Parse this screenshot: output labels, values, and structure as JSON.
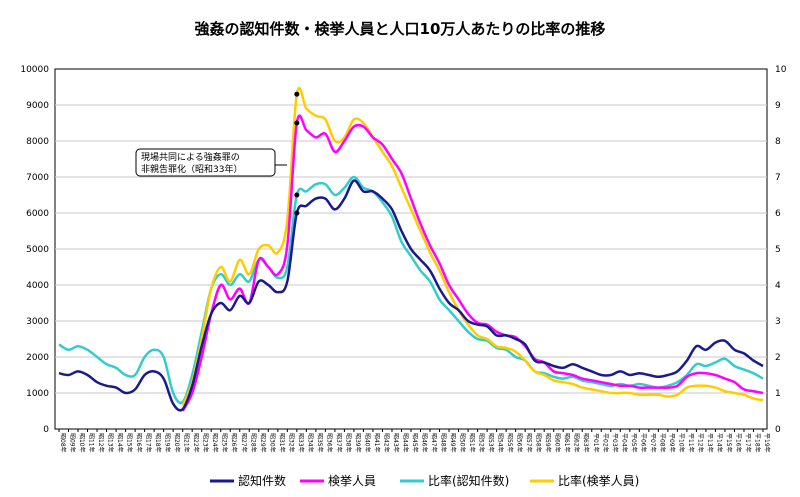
{
  "chart_data": {
    "type": "line",
    "title": "強姦の認知件数・検挙人員と人口10万人あたりの比率の推移",
    "ylim_left": [
      0,
      10000
    ],
    "ylim_right": [
      0,
      10
    ],
    "yticks_left": [
      "0",
      "1000",
      "2000",
      "3000",
      "4000",
      "5000",
      "6000",
      "7000",
      "8000",
      "9000",
      "10000"
    ],
    "yticks_right": [
      "0",
      "1",
      "2",
      "3",
      "4",
      "5",
      "6",
      "7",
      "8",
      "9",
      "10"
    ],
    "categories": [
      "昭08年",
      "昭09年",
      "昭10年",
      "昭11年",
      "昭12年",
      "昭13年",
      "昭14年",
      "昭15年",
      "昭16年",
      "昭17年",
      "昭18年",
      "昭19年",
      "昭20年",
      "昭21年",
      "昭22年",
      "昭23年",
      "昭24年",
      "昭25年",
      "昭26年",
      "昭27年",
      "昭28年",
      "昭29年",
      "昭30年",
      "昭31年",
      "昭32年",
      "昭33年",
      "昭34年",
      "昭35年",
      "昭36年",
      "昭37年",
      "昭38年",
      "昭39年",
      "昭40年",
      "昭41年",
      "昭42年",
      "昭43年",
      "昭44年",
      "昭45年",
      "昭46年",
      "昭47年",
      "昭48年",
      "昭49年",
      "昭50年",
      "昭51年",
      "昭52年",
      "昭53年",
      "昭54年",
      "昭55年",
      "昭56年",
      "昭57年",
      "昭58年",
      "昭59年",
      "昭60年",
      "昭61年",
      "昭62年",
      "昭63年",
      "平01年",
      "平02年",
      "平03年",
      "平04年",
      "平05年",
      "平06年",
      "平07年",
      "平08年",
      "平09年",
      "平10年",
      "平11年",
      "平12年",
      "平13年",
      "平14年",
      "平15年",
      "平16年",
      "平17年",
      "平18年",
      "平19年"
    ],
    "series": [
      {
        "name": "認知件数",
        "axis": "left",
        "color": "#1a1a8c",
        "values": [
          1550,
          1500,
          1600,
          1500,
          1300,
          1200,
          1150,
          1000,
          1100,
          1500,
          1600,
          1400,
          700,
          550,
          1200,
          2300,
          3200,
          3500,
          3300,
          3700,
          3500,
          4100,
          4000,
          3800,
          4100,
          6000,
          6200,
          6400,
          6400,
          6100,
          6400,
          6900,
          6600,
          6600,
          6400,
          6100,
          5500,
          5000,
          4700,
          4400,
          3900,
          3500,
          3300,
          3000,
          2900,
          2850,
          2600,
          2600,
          2500,
          2350,
          1900,
          1850,
          1750,
          1700,
          1800,
          1700,
          1600,
          1500,
          1500,
          1600,
          1500,
          1550,
          1500,
          1450,
          1500,
          1600,
          1900,
          2300,
          2200,
          2400,
          2450,
          2200,
          2100,
          1900,
          1750
        ]
      },
      {
        "name": "検挙人員",
        "axis": "left",
        "color": "#ff00ff",
        "values": [
          null,
          null,
          null,
          null,
          null,
          null,
          null,
          null,
          null,
          null,
          null,
          null,
          null,
          500,
          1000,
          2000,
          3200,
          4000,
          3600,
          3900,
          3500,
          4700,
          4500,
          4300,
          5100,
          8500,
          8300,
          8100,
          8200,
          7700,
          8000,
          8400,
          8400,
          8100,
          7900,
          7500,
          7100,
          6400,
          5700,
          5100,
          4600,
          4000,
          3600,
          3200,
          2950,
          2900,
          2700,
          2600,
          2550,
          2300,
          1950,
          1850,
          1600,
          1550,
          1500,
          1400,
          1350,
          1300,
          1250,
          1200,
          1200,
          1150,
          1150,
          1150,
          1150,
          1200,
          1450,
          1550,
          1550,
          1500,
          1400,
          1300,
          1100,
          1050,
          1000
        ]
      },
      {
        "name": "比率(認知件数)",
        "axis": "right",
        "color": "#33cccc",
        "values": [
          2.35,
          2.2,
          2.3,
          2.2,
          2.0,
          1.8,
          1.7,
          1.5,
          1.5,
          2.0,
          2.2,
          2.0,
          1.0,
          0.75,
          1.5,
          2.7,
          3.9,
          4.3,
          4.0,
          4.3,
          4.1,
          4.7,
          4.5,
          4.2,
          4.5,
          6.5,
          6.6,
          6.8,
          6.8,
          6.5,
          6.7,
          7.0,
          6.7,
          6.6,
          6.3,
          5.9,
          5.2,
          4.8,
          4.4,
          4.1,
          3.6,
          3.3,
          3.0,
          2.7,
          2.5,
          2.45,
          2.25,
          2.2,
          2.0,
          1.9,
          1.6,
          1.55,
          1.45,
          1.4,
          1.45,
          1.35,
          1.3,
          1.25,
          1.2,
          1.25,
          1.2,
          1.25,
          1.2,
          1.15,
          1.2,
          1.3,
          1.5,
          1.8,
          1.75,
          1.85,
          1.95,
          1.75,
          1.65,
          1.55,
          1.4
        ]
      },
      {
        "name": "比率(検挙人員)",
        "axis": "right",
        "color": "#ffcc00",
        "values": [
          null,
          null,
          null,
          null,
          null,
          null,
          null,
          null,
          null,
          null,
          null,
          null,
          null,
          0.65,
          1.3,
          2.5,
          3.9,
          4.5,
          4.1,
          4.7,
          4.3,
          5.0,
          5.1,
          4.9,
          5.8,
          9.3,
          8.9,
          8.7,
          8.6,
          8.0,
          8.1,
          8.6,
          8.5,
          8.1,
          7.7,
          7.3,
          6.7,
          6.1,
          5.5,
          4.9,
          4.4,
          3.8,
          3.3,
          2.9,
          2.6,
          2.5,
          2.3,
          2.25,
          2.15,
          1.9,
          1.6,
          1.5,
          1.35,
          1.3,
          1.25,
          1.15,
          1.1,
          1.05,
          1.0,
          1.0,
          1.0,
          0.95,
          0.95,
          0.95,
          0.9,
          0.95,
          1.15,
          1.2,
          1.2,
          1.15,
          1.05,
          1.0,
          0.95,
          0.85,
          0.8
        ]
      }
    ],
    "markers": [
      {
        "series": 0,
        "index": 25
      },
      {
        "series": 1,
        "index": 25
      },
      {
        "series": 2,
        "index": 25
      },
      {
        "series": 3,
        "index": 25
      }
    ],
    "annotation": {
      "lines": [
        "現場共同による強姦罪の",
        "非親告罪化（昭和33年）"
      ]
    },
    "legend_position": "bottom"
  }
}
